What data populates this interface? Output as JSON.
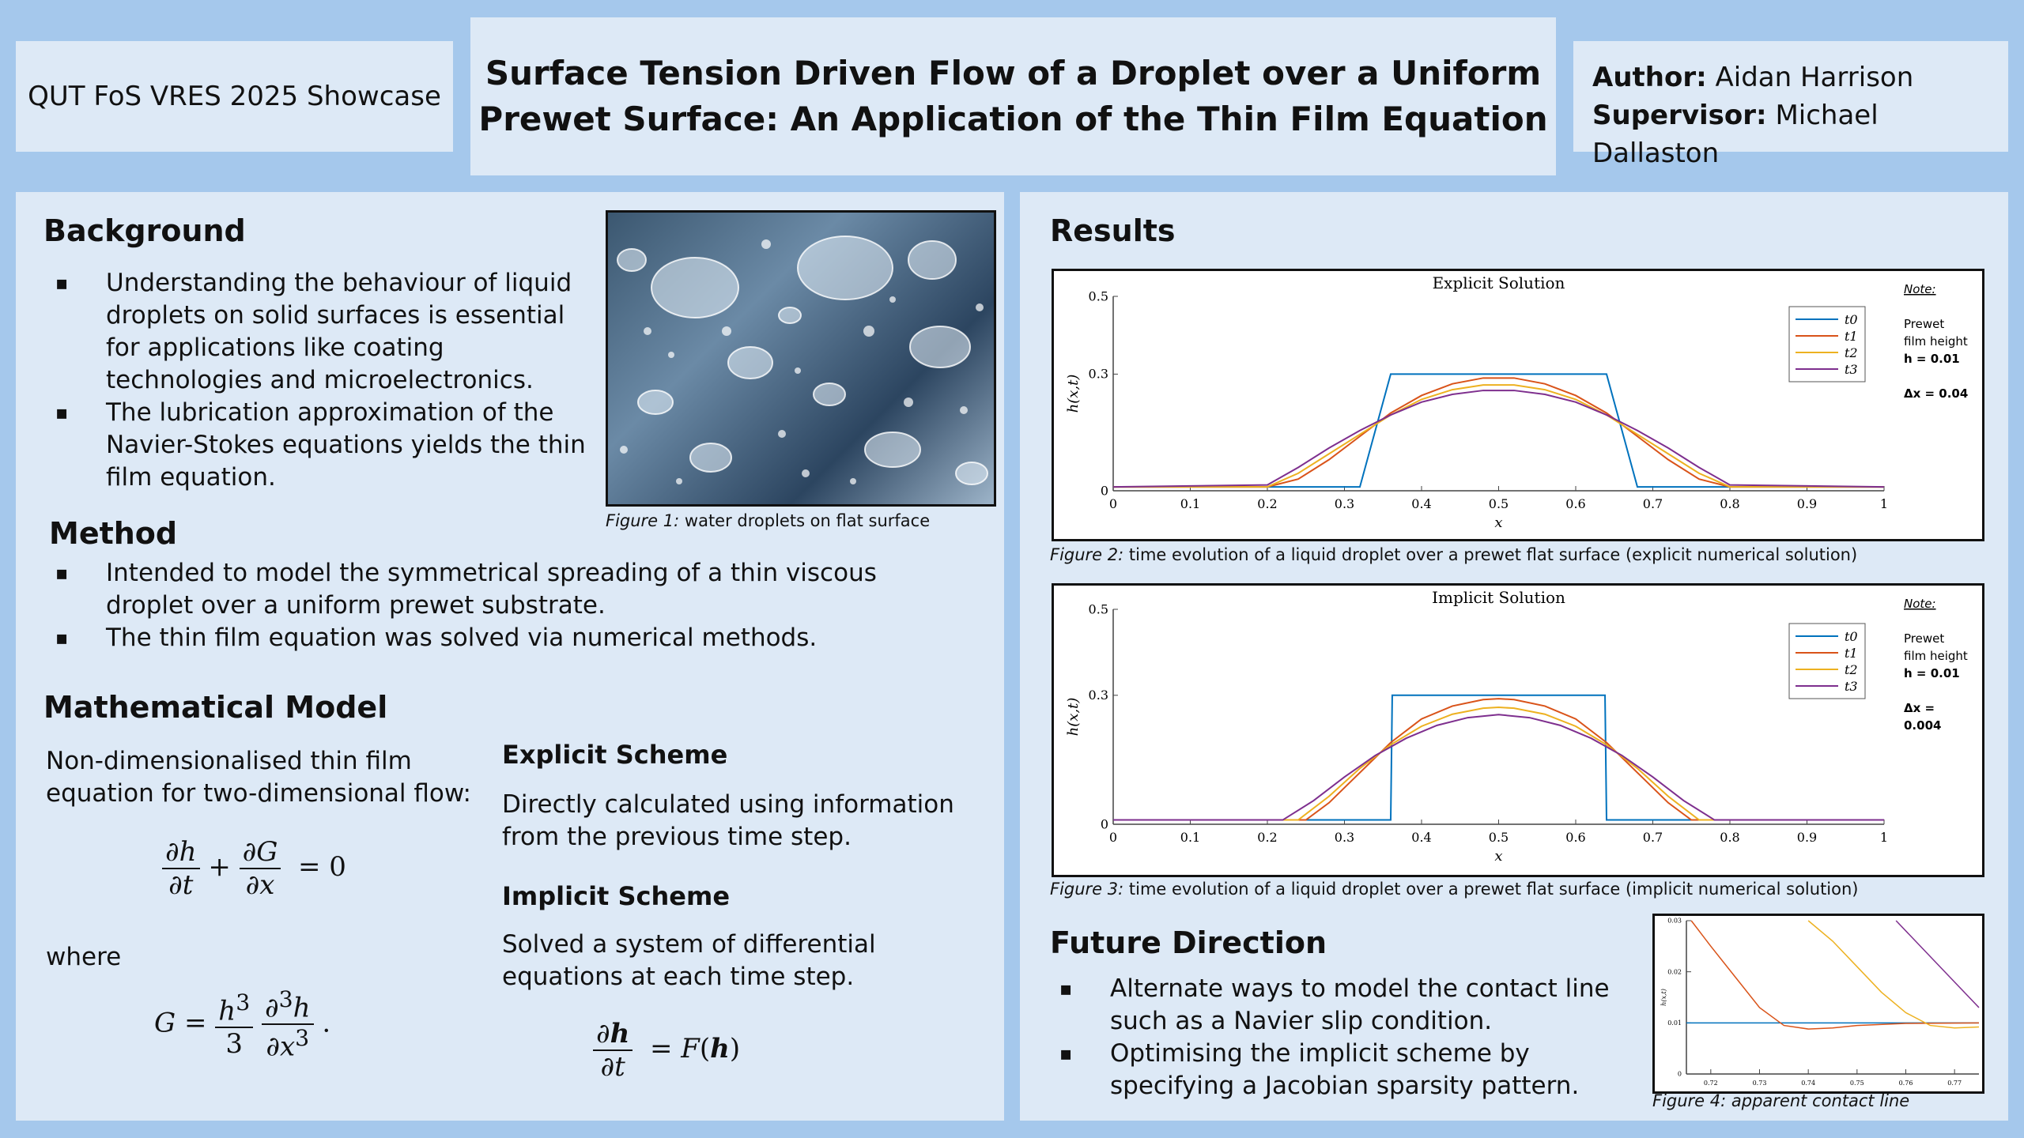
{
  "header": {
    "showcase": "QUT FoS VRES 2025 Showcase",
    "title_line1": "Surface Tension Driven Flow of a Droplet over a Uniform",
    "title_line2": "Prewet Surface: An Application of the Thin Film Equation",
    "author_label": "Author:",
    "author_name": "Aidan Harrison",
    "supervisor_label": "Supervisor:",
    "supervisor_name": "Michael Dallaston"
  },
  "background": {
    "heading": "Background",
    "bullets": [
      "Understanding the behaviour of liquid droplets on solid surfaces is essential for applications like coating technologies and microelectronics.",
      "The lubrication approximation of the Navier-Stokes equations yields the thin film equation."
    ],
    "figure_label": "Figure 1:",
    "figure_caption": " water droplets on flat surface"
  },
  "method": {
    "heading": "Method",
    "bullets": [
      "Intended to model the symmetrical spreading of a thin viscous droplet over a uniform prewet substrate.",
      "The thin film equation was solved via numerical methods."
    ]
  },
  "model": {
    "heading": "Mathematical Model",
    "intro": "Non-dimensionalised thin film equation for two-dimensional flow:",
    "where": "where",
    "explicit_heading": "Explicit Scheme",
    "explicit_text": "Directly calculated using information from the previous time step.",
    "implicit_heading": "Implicit Scheme",
    "implicit_text": "Solved a system of differential equations at each time step."
  },
  "results": {
    "heading": "Results",
    "fig2_label": "Figure 2:",
    "fig2_caption": " time evolution of a liquid droplet over a prewet flat surface (explicit numerical solution)",
    "fig3_label": "Figure 3:",
    "fig3_caption": " time evolution of a liquid droplet over a prewet flat surface (implicit numerical solution)"
  },
  "future": {
    "heading": "Future Direction",
    "bullets": [
      "Alternate ways to model the contact line such as a Navier slip condition.",
      "Optimising the implicit scheme by specifying a Jacobian sparsity pattern."
    ],
    "fig4_label": "Figure 4:",
    "fig4_caption": " apparent contact line"
  },
  "chart_data": [
    {
      "type": "line",
      "title": "Explicit Solution",
      "xlabel": "x",
      "ylabel": "h(x,t)",
      "xlim": [
        0,
        1
      ],
      "ylim": [
        0,
        0.5
      ],
      "xticks": [
        "0",
        "0.1",
        "0.2",
        "0.3",
        "0.4",
        "0.5",
        "0.6",
        "0.7",
        "0.8",
        "0.9",
        "1"
      ],
      "yticks": [
        "0",
        "0.3",
        "0.5"
      ],
      "legend_position": "top-right",
      "note_title": "Note:",
      "note_lines": [
        "Prewet",
        "film height",
        "h = 0.01",
        "Δx = 0.04"
      ],
      "series": [
        {
          "name": "t0",
          "color": "#0072BD",
          "x": [
            0,
            0.32,
            0.36,
            0.64,
            0.68,
            1
          ],
          "y": [
            0.01,
            0.01,
            0.3,
            0.3,
            0.01,
            0.01
          ]
        },
        {
          "name": "t1",
          "color": "#D95319",
          "x": [
            0,
            0.2,
            0.24,
            0.28,
            0.32,
            0.36,
            0.4,
            0.44,
            0.48,
            0.52,
            0.56,
            0.6,
            0.64,
            0.68,
            0.72,
            0.76,
            0.8,
            1
          ],
          "y": [
            0.01,
            0.01,
            0.03,
            0.08,
            0.14,
            0.2,
            0.245,
            0.275,
            0.29,
            0.29,
            0.275,
            0.245,
            0.2,
            0.14,
            0.08,
            0.03,
            0.01,
            0.01
          ]
        },
        {
          "name": "t2",
          "color": "#EDB120",
          "x": [
            0,
            0.2,
            0.24,
            0.28,
            0.32,
            0.36,
            0.4,
            0.44,
            0.48,
            0.52,
            0.56,
            0.6,
            0.64,
            0.68,
            0.72,
            0.76,
            0.8,
            1
          ],
          "y": [
            0.01,
            0.01,
            0.045,
            0.095,
            0.145,
            0.195,
            0.235,
            0.26,
            0.272,
            0.272,
            0.26,
            0.235,
            0.195,
            0.145,
            0.095,
            0.045,
            0.01,
            0.01
          ]
        },
        {
          "name": "t3",
          "color": "#7E2F8E",
          "x": [
            0,
            0.2,
            0.24,
            0.28,
            0.32,
            0.36,
            0.4,
            0.44,
            0.48,
            0.52,
            0.56,
            0.6,
            0.64,
            0.68,
            0.72,
            0.76,
            0.8,
            1
          ],
          "y": [
            0.01,
            0.015,
            0.06,
            0.11,
            0.155,
            0.195,
            0.228,
            0.248,
            0.258,
            0.258,
            0.248,
            0.228,
            0.195,
            0.155,
            0.11,
            0.06,
            0.015,
            0.01
          ]
        }
      ]
    },
    {
      "type": "line",
      "title": "Implicit Solution",
      "xlabel": "x",
      "ylabel": "h(x,t)",
      "xlim": [
        0,
        1
      ],
      "ylim": [
        0,
        0.5
      ],
      "xticks": [
        "0",
        "0.1",
        "0.2",
        "0.3",
        "0.4",
        "0.5",
        "0.6",
        "0.7",
        "0.8",
        "0.9",
        "1"
      ],
      "yticks": [
        "0",
        "0.3",
        "0.5"
      ],
      "legend_position": "top-right",
      "note_title": "Note:",
      "note_lines": [
        "Prewet",
        "film height",
        "h = 0.01",
        "Δx =",
        "0.004"
      ],
      "series": [
        {
          "name": "t0",
          "color": "#0072BD",
          "x": [
            0,
            0.36,
            0.362,
            0.638,
            0.64,
            1
          ],
          "y": [
            0.01,
            0.01,
            0.3,
            0.3,
            0.01,
            0.01
          ]
        },
        {
          "name": "t1",
          "color": "#D95319",
          "x": [
            0,
            0.25,
            0.28,
            0.32,
            0.36,
            0.4,
            0.44,
            0.48,
            0.5,
            0.52,
            0.56,
            0.6,
            0.64,
            0.68,
            0.72,
            0.75,
            1
          ],
          "y": [
            0.01,
            0.01,
            0.05,
            0.12,
            0.19,
            0.245,
            0.275,
            0.29,
            0.292,
            0.29,
            0.275,
            0.245,
            0.19,
            0.12,
            0.05,
            0.01,
            0.01
          ]
        },
        {
          "name": "t2",
          "color": "#EDB120",
          "x": [
            0,
            0.24,
            0.28,
            0.32,
            0.36,
            0.4,
            0.44,
            0.48,
            0.5,
            0.52,
            0.56,
            0.6,
            0.64,
            0.68,
            0.72,
            0.76,
            1
          ],
          "y": [
            0.01,
            0.01,
            0.065,
            0.13,
            0.185,
            0.228,
            0.256,
            0.27,
            0.272,
            0.27,
            0.256,
            0.228,
            0.185,
            0.13,
            0.065,
            0.01,
            0.01
          ]
        },
        {
          "name": "t3",
          "color": "#7E2F8E",
          "x": [
            0,
            0.22,
            0.26,
            0.3,
            0.34,
            0.38,
            0.42,
            0.46,
            0.5,
            0.54,
            0.58,
            0.62,
            0.66,
            0.7,
            0.74,
            0.78,
            1
          ],
          "y": [
            0.01,
            0.01,
            0.055,
            0.11,
            0.16,
            0.2,
            0.23,
            0.248,
            0.255,
            0.248,
            0.23,
            0.2,
            0.16,
            0.11,
            0.055,
            0.01,
            0.01
          ]
        }
      ]
    },
    {
      "type": "line",
      "title": "",
      "xlabel": "",
      "ylabel": "h(x,t)",
      "xlim": [
        0.715,
        0.775
      ],
      "ylim": [
        0,
        0.03
      ],
      "xticks": [
        "0.72",
        "0.73",
        "0.74",
        "0.75",
        "0.76",
        "0.77"
      ],
      "yticks": [
        "0",
        "0.01",
        "0.02",
        "0.03"
      ],
      "series": [
        {
          "name": "",
          "color": "#0072BD",
          "x": [
            0.715,
            0.775
          ],
          "y": [
            0.01,
            0.01
          ]
        },
        {
          "name": "",
          "color": "#D95319",
          "x": [
            0.716,
            0.72,
            0.725,
            0.73,
            0.735,
            0.74,
            0.745,
            0.75,
            0.76,
            0.775
          ],
          "y": [
            0.03,
            0.025,
            0.019,
            0.013,
            0.0095,
            0.0088,
            0.009,
            0.0095,
            0.0099,
            0.01
          ]
        },
        {
          "name": "",
          "color": "#EDB120",
          "x": [
            0.74,
            0.745,
            0.75,
            0.755,
            0.76,
            0.765,
            0.77,
            0.775
          ],
          "y": [
            0.03,
            0.026,
            0.021,
            0.016,
            0.012,
            0.0095,
            0.009,
            0.0092
          ]
        },
        {
          "name": "",
          "color": "#7E2F8E",
          "x": [
            0.758,
            0.762,
            0.766,
            0.77,
            0.775
          ],
          "y": [
            0.03,
            0.026,
            0.022,
            0.018,
            0.013
          ]
        }
      ]
    }
  ]
}
